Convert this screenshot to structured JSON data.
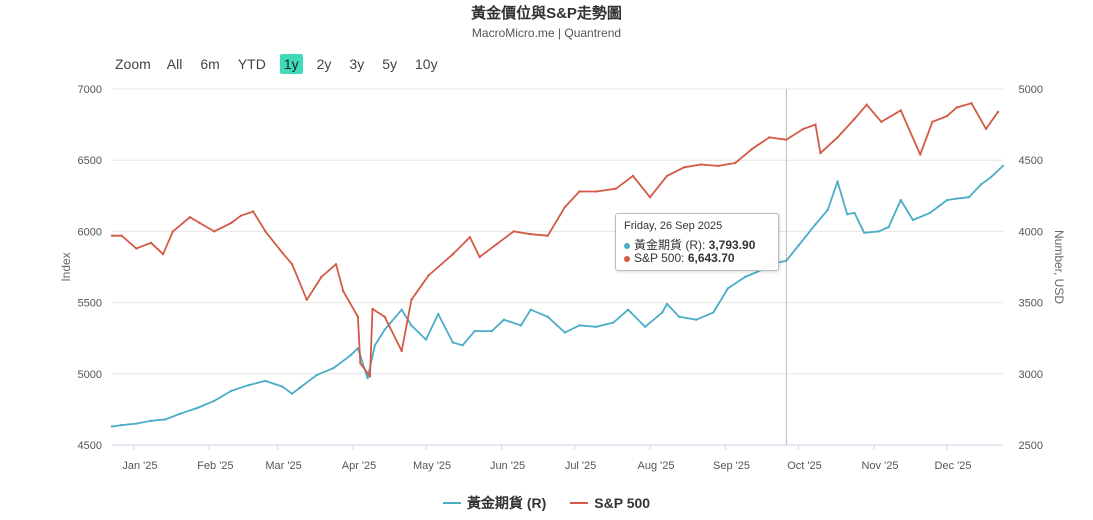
{
  "title": "黃金價位與S&P走勢圖",
  "subtitle": "MacroMicro.me | Quantrend",
  "range_selector": {
    "label": "Zoom",
    "buttons": [
      "All",
      "6m",
      "YTD",
      "1y",
      "2y",
      "3y",
      "5y",
      "10y"
    ],
    "active": "1y"
  },
  "colors": {
    "gold": "#4bacc6",
    "sp500": "#d35a45",
    "active_button": "#3ddbb8"
  },
  "tooltip": {
    "date": "Friday, 26 Sep 2025",
    "rows": [
      {
        "label": "黃金期貨 (R):",
        "value": "3,793.90"
      },
      {
        "label": "S&P 500:",
        "value": "6,643.70"
      }
    ]
  },
  "chart_data": {
    "type": "line",
    "title": "黃金價位與S&P走勢圖",
    "subtitle": "MacroMicro.me | Quantrend",
    "xlabel": "",
    "x_ticks": [
      "Jan '25",
      "Feb '25",
      "Mar '25",
      "Apr '25",
      "May '25",
      "Jun '25",
      "Jul '25",
      "Aug '25",
      "Sep '25",
      "Oct '25",
      "Nov '25",
      "Dec '25"
    ],
    "x_range": [
      "2024-12-23",
      "2025-12-24"
    ],
    "y_left": {
      "label": "Index",
      "range": [
        4500,
        7000
      ],
      "ticks": [
        "7000",
        "6500",
        "6000",
        "5500",
        "5000",
        "4500"
      ]
    },
    "y_right": {
      "label": "Number, USD",
      "range": [
        2500,
        5000
      ],
      "ticks": [
        "5000",
        "4500",
        "4000",
        "3500",
        "3000",
        "2500"
      ]
    },
    "grid": true,
    "legend_position": "bottom",
    "series": [
      {
        "name": "黃金期貨 (R)",
        "axis": "right",
        "color": "#4bacc6",
        "points": [
          [
            "2024-12-23",
            2630
          ],
          [
            "2024-12-27",
            2640
          ],
          [
            "2025-01-02",
            2650
          ],
          [
            "2025-01-08",
            2670
          ],
          [
            "2025-01-14",
            2680
          ],
          [
            "2025-01-20",
            2720
          ],
          [
            "2025-01-27",
            2760
          ],
          [
            "2025-02-03",
            2810
          ],
          [
            "2025-02-10",
            2880
          ],
          [
            "2025-02-17",
            2920
          ],
          [
            "2025-02-24",
            2950
          ],
          [
            "2025-03-03",
            2910
          ],
          [
            "2025-03-07",
            2860
          ],
          [
            "2025-03-10",
            2900
          ],
          [
            "2025-03-17",
            2990
          ],
          [
            "2025-03-24",
            3040
          ],
          [
            "2025-03-31",
            3130
          ],
          [
            "2025-04-03",
            3180
          ],
          [
            "2025-04-07",
            2970
          ],
          [
            "2025-04-10",
            3200
          ],
          [
            "2025-04-14",
            3310
          ],
          [
            "2025-04-21",
            3450
          ],
          [
            "2025-04-25",
            3340
          ],
          [
            "2025-05-01",
            3240
          ],
          [
            "2025-05-06",
            3420
          ],
          [
            "2025-05-12",
            3220
          ],
          [
            "2025-05-16",
            3200
          ],
          [
            "2025-05-21",
            3300
          ],
          [
            "2025-05-28",
            3300
          ],
          [
            "2025-06-02",
            3380
          ],
          [
            "2025-06-09",
            3340
          ],
          [
            "2025-06-13",
            3450
          ],
          [
            "2025-06-20",
            3400
          ],
          [
            "2025-06-27",
            3290
          ],
          [
            "2025-07-03",
            3340
          ],
          [
            "2025-07-10",
            3330
          ],
          [
            "2025-07-17",
            3360
          ],
          [
            "2025-07-23",
            3450
          ],
          [
            "2025-07-30",
            3330
          ],
          [
            "2025-08-06",
            3430
          ],
          [
            "2025-08-08",
            3490
          ],
          [
            "2025-08-13",
            3400
          ],
          [
            "2025-08-20",
            3380
          ],
          [
            "2025-08-27",
            3430
          ],
          [
            "2025-09-02",
            3600
          ],
          [
            "2025-09-09",
            3680
          ],
          [
            "2025-09-16",
            3730
          ],
          [
            "2025-09-22",
            3780
          ],
          [
            "2025-09-26",
            3793.9
          ],
          [
            "2025-10-01",
            3900
          ],
          [
            "2025-10-08",
            4050
          ],
          [
            "2025-10-13",
            4150
          ],
          [
            "2025-10-17",
            4350
          ],
          [
            "2025-10-21",
            4120
          ],
          [
            "2025-10-24",
            4130
          ],
          [
            "2025-10-28",
            3990
          ],
          [
            "2025-11-03",
            4000
          ],
          [
            "2025-11-07",
            4030
          ],
          [
            "2025-11-12",
            4220
          ],
          [
            "2025-11-17",
            4080
          ],
          [
            "2025-11-24",
            4130
          ],
          [
            "2025-12-01",
            4220
          ],
          [
            "2025-12-05",
            4230
          ],
          [
            "2025-12-10",
            4240
          ],
          [
            "2025-12-15",
            4330
          ],
          [
            "2025-12-19",
            4380
          ],
          [
            "2025-12-24",
            4460
          ]
        ]
      },
      {
        "name": "S&P 500",
        "axis": "left",
        "color": "#d35a45",
        "points": [
          [
            "2024-12-23",
            5970
          ],
          [
            "2024-12-27",
            5970
          ],
          [
            "2025-01-02",
            5880
          ],
          [
            "2025-01-08",
            5920
          ],
          [
            "2025-01-13",
            5840
          ],
          [
            "2025-01-17",
            6000
          ],
          [
            "2025-01-24",
            6100
          ],
          [
            "2025-01-28",
            6060
          ],
          [
            "2025-02-03",
            6000
          ],
          [
            "2025-02-10",
            6060
          ],
          [
            "2025-02-14",
            6110
          ],
          [
            "2025-02-19",
            6140
          ],
          [
            "2025-02-24",
            6000
          ],
          [
            "2025-03-03",
            5850
          ],
          [
            "2025-03-07",
            5770
          ],
          [
            "2025-03-13",
            5520
          ],
          [
            "2025-03-19",
            5680
          ],
          [
            "2025-03-25",
            5770
          ],
          [
            "2025-03-28",
            5580
          ],
          [
            "2025-04-03",
            5400
          ],
          [
            "2025-04-04",
            5074
          ],
          [
            "2025-04-08",
            4982
          ],
          [
            "2025-04-09",
            5456
          ],
          [
            "2025-04-14",
            5400
          ],
          [
            "2025-04-21",
            5160
          ],
          [
            "2025-04-25",
            5520
          ],
          [
            "2025-05-02",
            5690
          ],
          [
            "2025-05-12",
            5840
          ],
          [
            "2025-05-19",
            5960
          ],
          [
            "2025-05-23",
            5820
          ],
          [
            "2025-05-30",
            5910
          ],
          [
            "2025-06-06",
            6000
          ],
          [
            "2025-06-13",
            5980
          ],
          [
            "2025-06-20",
            5970
          ],
          [
            "2025-06-27",
            6170
          ],
          [
            "2025-07-03",
            6280
          ],
          [
            "2025-07-10",
            6280
          ],
          [
            "2025-07-18",
            6300
          ],
          [
            "2025-07-25",
            6390
          ],
          [
            "2025-08-01",
            6240
          ],
          [
            "2025-08-08",
            6390
          ],
          [
            "2025-08-15",
            6450
          ],
          [
            "2025-08-22",
            6470
          ],
          [
            "2025-08-29",
            6460
          ],
          [
            "2025-09-05",
            6480
          ],
          [
            "2025-09-12",
            6580
          ],
          [
            "2025-09-19",
            6660
          ],
          [
            "2025-09-26",
            6643.7
          ],
          [
            "2025-10-03",
            6720
          ],
          [
            "2025-10-08",
            6750
          ],
          [
            "2025-10-10",
            6550
          ],
          [
            "2025-10-17",
            6660
          ],
          [
            "2025-10-24",
            6790
          ],
          [
            "2025-10-29",
            6890
          ],
          [
            "2025-11-04",
            6770
          ],
          [
            "2025-11-12",
            6850
          ],
          [
            "2025-11-20",
            6540
          ],
          [
            "2025-11-25",
            6770
          ],
          [
            "2025-12-01",
            6810
          ],
          [
            "2025-12-05",
            6870
          ],
          [
            "2025-12-11",
            6900
          ],
          [
            "2025-12-17",
            6720
          ],
          [
            "2025-12-22",
            6840
          ]
        ]
      }
    ]
  }
}
